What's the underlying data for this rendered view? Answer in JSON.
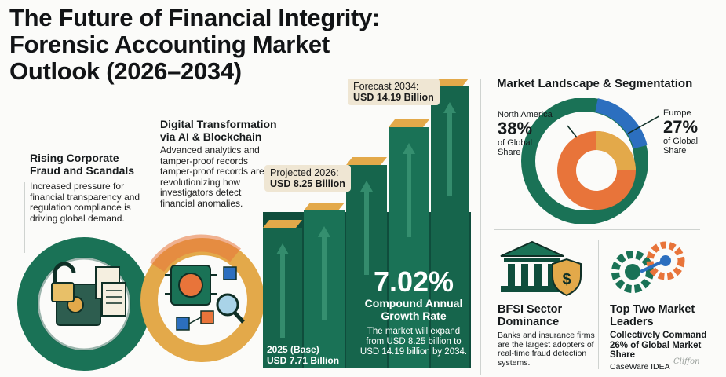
{
  "title_lines": [
    "The Future of Financial Integrity:",
    "Forensic Accounting Market",
    "Outlook (2026–2034)"
  ],
  "drivers": [
    {
      "heading_lines": [
        "Rising Corporate",
        "Fraud and Scandals"
      ],
      "body_lines": [
        "Increased pressure for",
        "financial transparency and",
        "regulation compliance is",
        "driving global demand."
      ]
    },
    {
      "heading_lines": [
        "Digital Transformation",
        "via AI & Blockchain"
      ],
      "body_lines": [
        "Advanced analytics and",
        "tamper-proof records",
        "tamper-proof records are",
        "revolutionizing how",
        "investigators detect",
        "financial anomalies."
      ]
    }
  ],
  "market": {
    "base": {
      "label": "2025 (Base)",
      "value": "USD 7.71 Billion"
    },
    "projected": {
      "label": "Projected 2026:",
      "value": "USD 8.25 Billion"
    },
    "forecast": {
      "label": "Forecast 2034:",
      "value": "USD 14.19 Billion"
    },
    "cagr_value": "7.02%",
    "cagr_label_lines": [
      "Compound Annual",
      "Growth Rate"
    ],
    "cagr_note_lines": [
      "The market will expand",
      "from USD 8.25 billion to",
      "USD 14.19 billion by 2034."
    ]
  },
  "landscape": {
    "heading": "Market Landscape & Segmentation",
    "regions": [
      {
        "name": "North America",
        "percent": "38%",
        "caption_lines": [
          "of Global",
          "Share"
        ],
        "share": 0.38,
        "color": "#1a7256"
      },
      {
        "name": "Europe",
        "percent": "27%",
        "caption_lines": [
          "of Global",
          "Share"
        ],
        "share": 0.27,
        "color": "#2c6fbf"
      }
    ]
  },
  "bfsi": {
    "heading_lines": [
      "BFSI Sector",
      "Dominance"
    ],
    "body_lines": [
      "Banks and insurance firms",
      "are the largest adopters of",
      "real-time fraud detection",
      "systems."
    ]
  },
  "leaders": {
    "heading_lines": [
      "Top Two Market",
      "Leaders"
    ],
    "sub_lines": [
      "Collectively Command",
      "26% of Global Market",
      "Share"
    ],
    "companies": "CaseWare IDEA",
    "signature": "Cliffon"
  },
  "colors": {
    "green_dark": "#0f4d3c",
    "green": "#1a7256",
    "gold": "#e3a94a",
    "orange": "#e8743a",
    "blue": "#2c6fbf"
  }
}
